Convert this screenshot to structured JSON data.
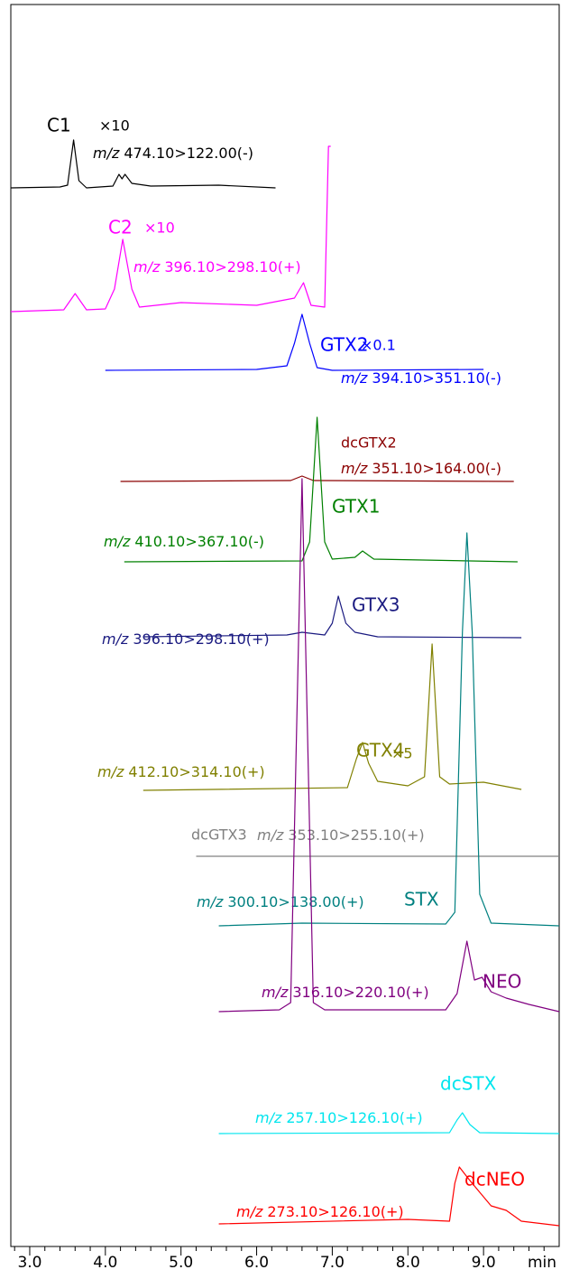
{
  "chart_data": {
    "type": "line",
    "xlabel": "min",
    "mz_prefix": "m/z",
    "xlim": [
      2.75,
      10.0
    ],
    "ylim": [
      0,
      1375
    ],
    "xticks": [
      {
        "value": 3,
        "label": "3.0"
      },
      {
        "value": 4,
        "label": "4.0"
      },
      {
        "value": 5,
        "label": "5.0"
      },
      {
        "value": 6,
        "label": "6.0"
      },
      {
        "value": 7,
        "label": "7.0"
      },
      {
        "value": 8,
        "label": "8.0"
      },
      {
        "value": 9,
        "label": "9.0"
      }
    ],
    "xminorticks": [
      2.8,
      3.2,
      3.4,
      3.6,
      3.8,
      4.2,
      4.4,
      4.6,
      4.8,
      5.2,
      5.4,
      5.6,
      5.8,
      6.2,
      6.4,
      6.6,
      6.8,
      7.2,
      7.4,
      7.6,
      7.8,
      8.2,
      8.4,
      8.6,
      8.8,
      9.2,
      9.4,
      9.6,
      9.8
    ],
    "series": [
      {
        "name": "C1",
        "multiplier": "×10",
        "transition": "474.10>122.00(-)",
        "color": "#000000",
        "x": [
          2.75,
          3.4,
          3.5,
          3.58,
          3.65,
          3.75,
          4.1,
          4.18,
          4.22,
          4.26,
          4.35,
          4.6,
          5.5,
          6.25
        ],
        "values": [
          1172,
          1173,
          1175,
          1225,
          1180,
          1172,
          1174,
          1187,
          1182,
          1187,
          1177,
          1174,
          1175,
          1172
        ]
      },
      {
        "name": "C2",
        "multiplier": "×10",
        "transition": "396.10>298.10(+)",
        "color": "#ff00ff",
        "x": [
          2.75,
          3.45,
          3.6,
          3.75,
          4.0,
          4.12,
          4.23,
          4.35,
          4.45,
          5.0,
          6.0,
          6.5,
          6.62,
          6.72,
          6.9,
          6.95,
          6.98
        ],
        "values": [
          1035,
          1037,
          1055,
          1037,
          1038,
          1060,
          1115,
          1060,
          1040,
          1045,
          1042,
          1050,
          1067,
          1042,
          1040,
          1218,
          1218
        ]
      },
      {
        "name": "GTX2",
        "multiplier": "×0.1",
        "transition": "394.10>351.10(-)",
        "color": "#0000ff",
        "x": [
          4.0,
          6.0,
          6.4,
          6.5,
          6.6,
          6.7,
          6.8,
          7.0,
          9.0
        ],
        "values": [
          970,
          971,
          975,
          1000,
          1032,
          1000,
          973,
          970,
          971
        ]
      },
      {
        "name": "dcGTX2",
        "transition": "351.10>164.00(-)",
        "color": "#8b0000",
        "x": [
          4.2,
          6.45,
          6.6,
          6.75,
          9.4
        ],
        "values": [
          847,
          848,
          853,
          848,
          847
        ]
      },
      {
        "name": "GTX1",
        "transition": "410.10>367.10(-)",
        "color": "#008000",
        "x": [
          4.25,
          6.6,
          6.7,
          6.8,
          6.9,
          7.0,
          7.3,
          7.4,
          7.55,
          9.45
        ],
        "values": [
          758,
          759,
          780,
          918,
          780,
          761,
          763,
          770,
          761,
          758
        ]
      },
      {
        "name": "GTX3",
        "transition": "396.10>298.10(+)",
        "color": "#1a1a80",
        "x": [
          4.5,
          6.4,
          6.6,
          6.9,
          7.0,
          7.08,
          7.18,
          7.3,
          7.6,
          9.5
        ],
        "values": [
          675,
          677,
          680,
          677,
          690,
          720,
          690,
          680,
          675,
          674
        ]
      },
      {
        "name": "GTX4",
        "multiplier": "×5",
        "transition": "412.10>314.10(+)",
        "color": "#808000",
        "x": [
          4.5,
          7.2,
          7.32,
          7.4,
          7.48,
          7.6,
          8.0,
          8.22,
          8.32,
          8.42,
          8.55,
          9.0,
          9.5
        ],
        "values": [
          505,
          508,
          540,
          558,
          535,
          515,
          510,
          520,
          667,
          520,
          512,
          514,
          506
        ]
      },
      {
        "name": "dcGTX3",
        "transition": "353.10>255.10(+)",
        "color": "#808080",
        "x": [
          5.2,
          10.0
        ],
        "values": [
          432,
          432
        ]
      },
      {
        "name": "STX",
        "transition": "300.10>138.00(+)",
        "color": "#008080",
        "x": [
          5.5,
          6.6,
          8.5,
          8.62,
          8.72,
          8.78,
          8.85,
          8.95,
          9.1,
          10.0
        ],
        "values": [
          355,
          358,
          357,
          370,
          680,
          790,
          680,
          390,
          358,
          355
        ]
      },
      {
        "name": "NEO",
        "transition": "316.10>220.10(+)",
        "color": "#800080",
        "x": [
          5.5,
          6.3,
          6.45,
          6.6,
          6.75,
          6.9,
          8.5,
          8.65,
          8.78,
          8.88,
          8.98,
          9.1,
          9.3,
          9.6,
          10.0
        ],
        "values": [
          260,
          262,
          270,
          850,
          270,
          262,
          262,
          280,
          338,
          295,
          298,
          282,
          275,
          268,
          260
        ]
      },
      {
        "name": "dcSTX",
        "transition": "257.10>126.10(+)",
        "color": "#00e5ee",
        "x": [
          5.5,
          8.55,
          8.65,
          8.72,
          8.82,
          8.95,
          10.0
        ],
        "values": [
          125,
          126,
          140,
          148,
          135,
          126,
          125
        ]
      },
      {
        "name": "dcNEO",
        "transition": "273.10>126.10(+)",
        "color": "#ff0000",
        "x": [
          5.5,
          8.0,
          8.55,
          8.62,
          8.68,
          8.8,
          8.95,
          9.1,
          9.3,
          9.5,
          10.0
        ],
        "values": [
          25,
          30,
          28,
          70,
          88,
          75,
          60,
          45,
          40,
          28,
          23
        ]
      }
    ]
  }
}
